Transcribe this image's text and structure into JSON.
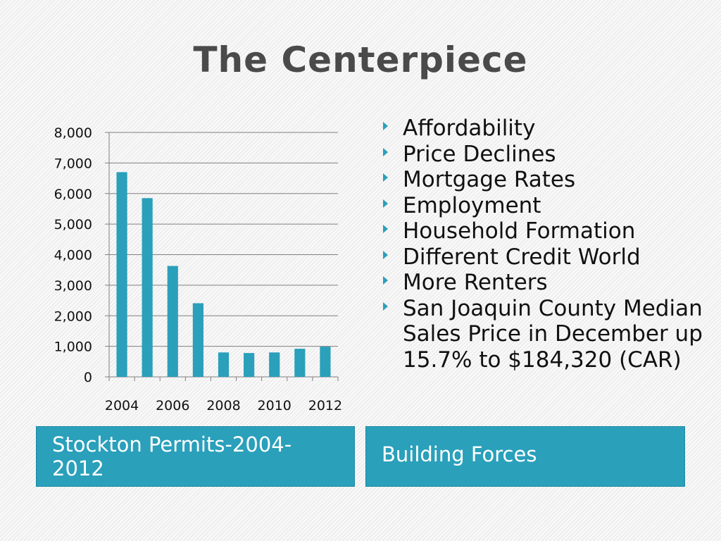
{
  "slide": {
    "title": "The Centerpiece",
    "bullets": [
      "Affordability",
      "Price Declines",
      "Mortgage Rates",
      "Employment",
      "Household Formation",
      "Different Credit World",
      "More Renters",
      "San Joaquin County Median Sales Price in December up 15.7% to $184,320 (CAR)"
    ],
    "chart_caption": "Stockton Permits-2004-2012",
    "bullets_caption": "Building Forces"
  },
  "colors": {
    "accent": "#2aa0bb",
    "bar": "#2aa0bb",
    "grid": "#808080",
    "title": "#4a4a4a"
  },
  "chart_data": {
    "type": "bar",
    "categories": [
      "2004",
      "2005",
      "2006",
      "2007",
      "2008",
      "2009",
      "2010",
      "2011",
      "2012"
    ],
    "series": [
      {
        "values": [
          6700,
          5850,
          3630,
          2410,
          800,
          780,
          800,
          920,
          990
        ]
      }
    ],
    "x_tick_labels": [
      "2004",
      "2006",
      "2008",
      "2010",
      "2012"
    ],
    "y_tick_labels": [
      "0",
      "1,000",
      "2,000",
      "3,000",
      "4,000",
      "5,000",
      "6,000",
      "7,000",
      "8,000"
    ],
    "ylim": [
      0,
      8000
    ],
    "grid": true,
    "legend": "none"
  }
}
